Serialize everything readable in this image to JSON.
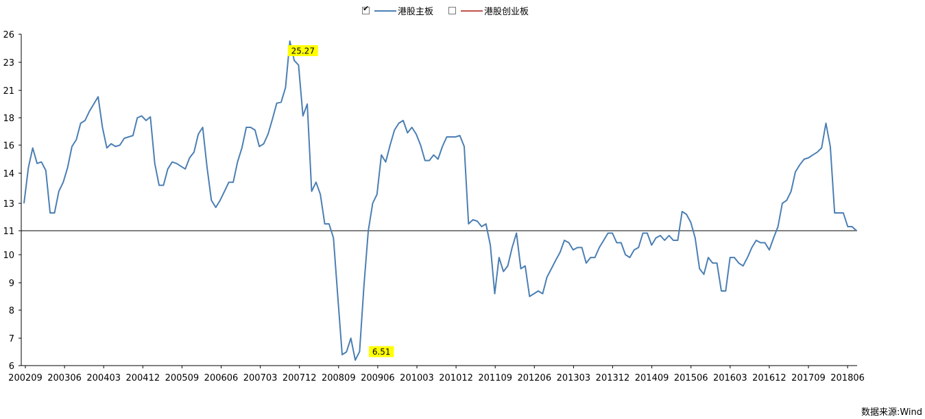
{
  "legend": {
    "items": [
      {
        "label": "港股主板",
        "checked": true,
        "color": "#4a7eb3"
      },
      {
        "label": "港股创业板",
        "checked": false,
        "color": "#c0504d"
      }
    ]
  },
  "source": "数据来源:Wind",
  "chart_data": {
    "type": "line",
    "y_tick_labels": [
      "6",
      "7",
      "8",
      "9",
      "10",
      "11",
      "13",
      "14",
      "16",
      "18",
      "21",
      "23",
      "26"
    ],
    "x_tick_labels": [
      "200209",
      "200306",
      "200403",
      "200412",
      "200509",
      "200606",
      "200703",
      "200712",
      "200809",
      "200906",
      "201003",
      "201012",
      "201109",
      "201206",
      "201303",
      "201312",
      "201409",
      "201506",
      "201603",
      "201612",
      "201709",
      "201806"
    ],
    "ylim": [
      6,
      26
    ],
    "reference_line": 11.0,
    "annotations": [
      {
        "label": "25.27",
        "x": 64,
        "y": 25.27
      },
      {
        "label": "6.51",
        "x": 82,
        "y": 6.51
      }
    ],
    "series": [
      {
        "name": "港股主板",
        "color": "#4a7eb3",
        "x_start": "200209",
        "values": [
          13.0,
          14.4,
          15.8,
          14.7,
          14.8,
          14.2,
          12.3,
          12.3,
          13.4,
          13.7,
          14.4,
          15.9,
          16.4,
          17.6,
          17.8,
          18.7,
          19.5,
          20.3,
          17.3,
          15.8,
          16.1,
          15.9,
          16.0,
          16.5,
          16.6,
          16.7,
          18.0,
          18.2,
          17.8,
          18.1,
          14.7,
          13.6,
          13.6,
          14.3,
          14.8,
          14.7,
          14.5,
          14.3,
          15.1,
          15.5,
          16.8,
          17.3,
          14.4,
          13.1,
          12.7,
          13.1,
          13.4,
          13.7,
          13.7,
          14.8,
          15.8,
          17.3,
          17.3,
          17.1,
          15.9,
          16.1,
          16.8,
          17.9,
          19.6,
          19.7,
          21.2,
          25.27,
          23.2,
          22.8,
          18.2,
          19.5,
          13.4,
          13.7,
          13.3,
          11.5,
          11.5,
          10.7,
          8.5,
          6.4,
          6.5,
          7.0,
          6.2,
          6.51,
          8.9,
          11.0,
          13.0,
          13.3,
          15.3,
          14.8,
          16.0,
          17.1,
          17.6,
          17.8,
          16.9,
          17.3,
          16.8,
          16.0,
          14.9,
          14.9,
          15.3,
          15.0,
          15.9,
          16.6,
          16.6,
          16.6,
          16.7,
          15.9,
          11.5,
          11.8,
          11.7,
          11.3,
          11.5,
          10.4,
          8.6,
          9.9,
          9.4,
          9.6,
          10.3,
          10.9,
          9.5,
          9.6,
          8.5,
          8.6,
          8.7,
          8.6,
          9.2,
          9.5,
          9.8,
          10.1,
          10.6,
          10.5,
          10.2,
          10.3,
          10.3,
          9.7,
          9.9,
          9.9,
          10.3,
          10.6,
          10.9,
          10.9,
          10.5,
          10.5,
          10.0,
          9.9,
          10.2,
          10.3,
          10.9,
          10.9,
          10.4,
          10.7,
          10.8,
          10.6,
          10.8,
          10.6,
          10.6,
          12.4,
          12.2,
          11.6,
          10.7,
          9.5,
          9.3,
          9.9,
          9.7,
          9.7,
          8.7,
          8.7,
          9.9,
          9.9,
          9.7,
          9.6,
          9.9,
          10.3,
          10.6,
          10.5,
          10.5,
          10.2,
          10.7,
          11.3,
          13.0,
          13.1,
          13.4,
          14.1,
          14.6,
          15.0,
          15.1,
          15.3,
          15.5,
          15.8,
          17.6,
          15.9,
          12.3,
          12.3,
          12.3,
          11.3,
          11.3,
          11.0
        ]
      },
      {
        "name": "港股创业板",
        "color": "#c0504d",
        "values": []
      }
    ]
  }
}
